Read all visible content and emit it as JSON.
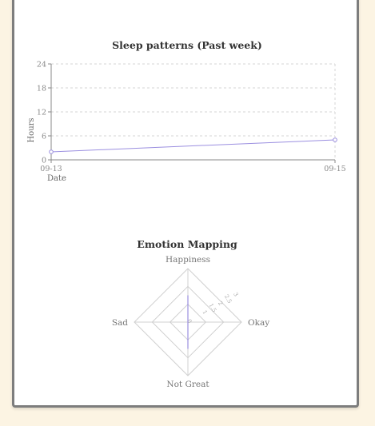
{
  "chart_data": [
    {
      "type": "line",
      "title": "Sleep patterns (Past week)",
      "xlabel": "Date",
      "ylabel": "Hours",
      "x": [
        "09-13",
        "09-15"
      ],
      "series": [
        {
          "values": [
            2,
            5
          ]
        }
      ],
      "ylim": [
        0,
        24
      ],
      "yticks": [
        0,
        6,
        12,
        18,
        24
      ],
      "grid": true,
      "colors": {
        "line": "#9b8fe0",
        "grid": "#d6d6d6",
        "axis": "#888888"
      }
    },
    {
      "type": "radar",
      "title": "Emotion Mapping",
      "axes": [
        "Happiness",
        "Okay",
        "Not Great",
        "Sad"
      ],
      "values": [
        1.5,
        0,
        1.5,
        0
      ],
      "rlim": [
        0,
        3
      ],
      "rticks": [
        0,
        1,
        1.5,
        2,
        2.5,
        3
      ],
      "colors": {
        "line": "#9b8fe0",
        "grid": "#d0d0d0"
      }
    }
  ]
}
